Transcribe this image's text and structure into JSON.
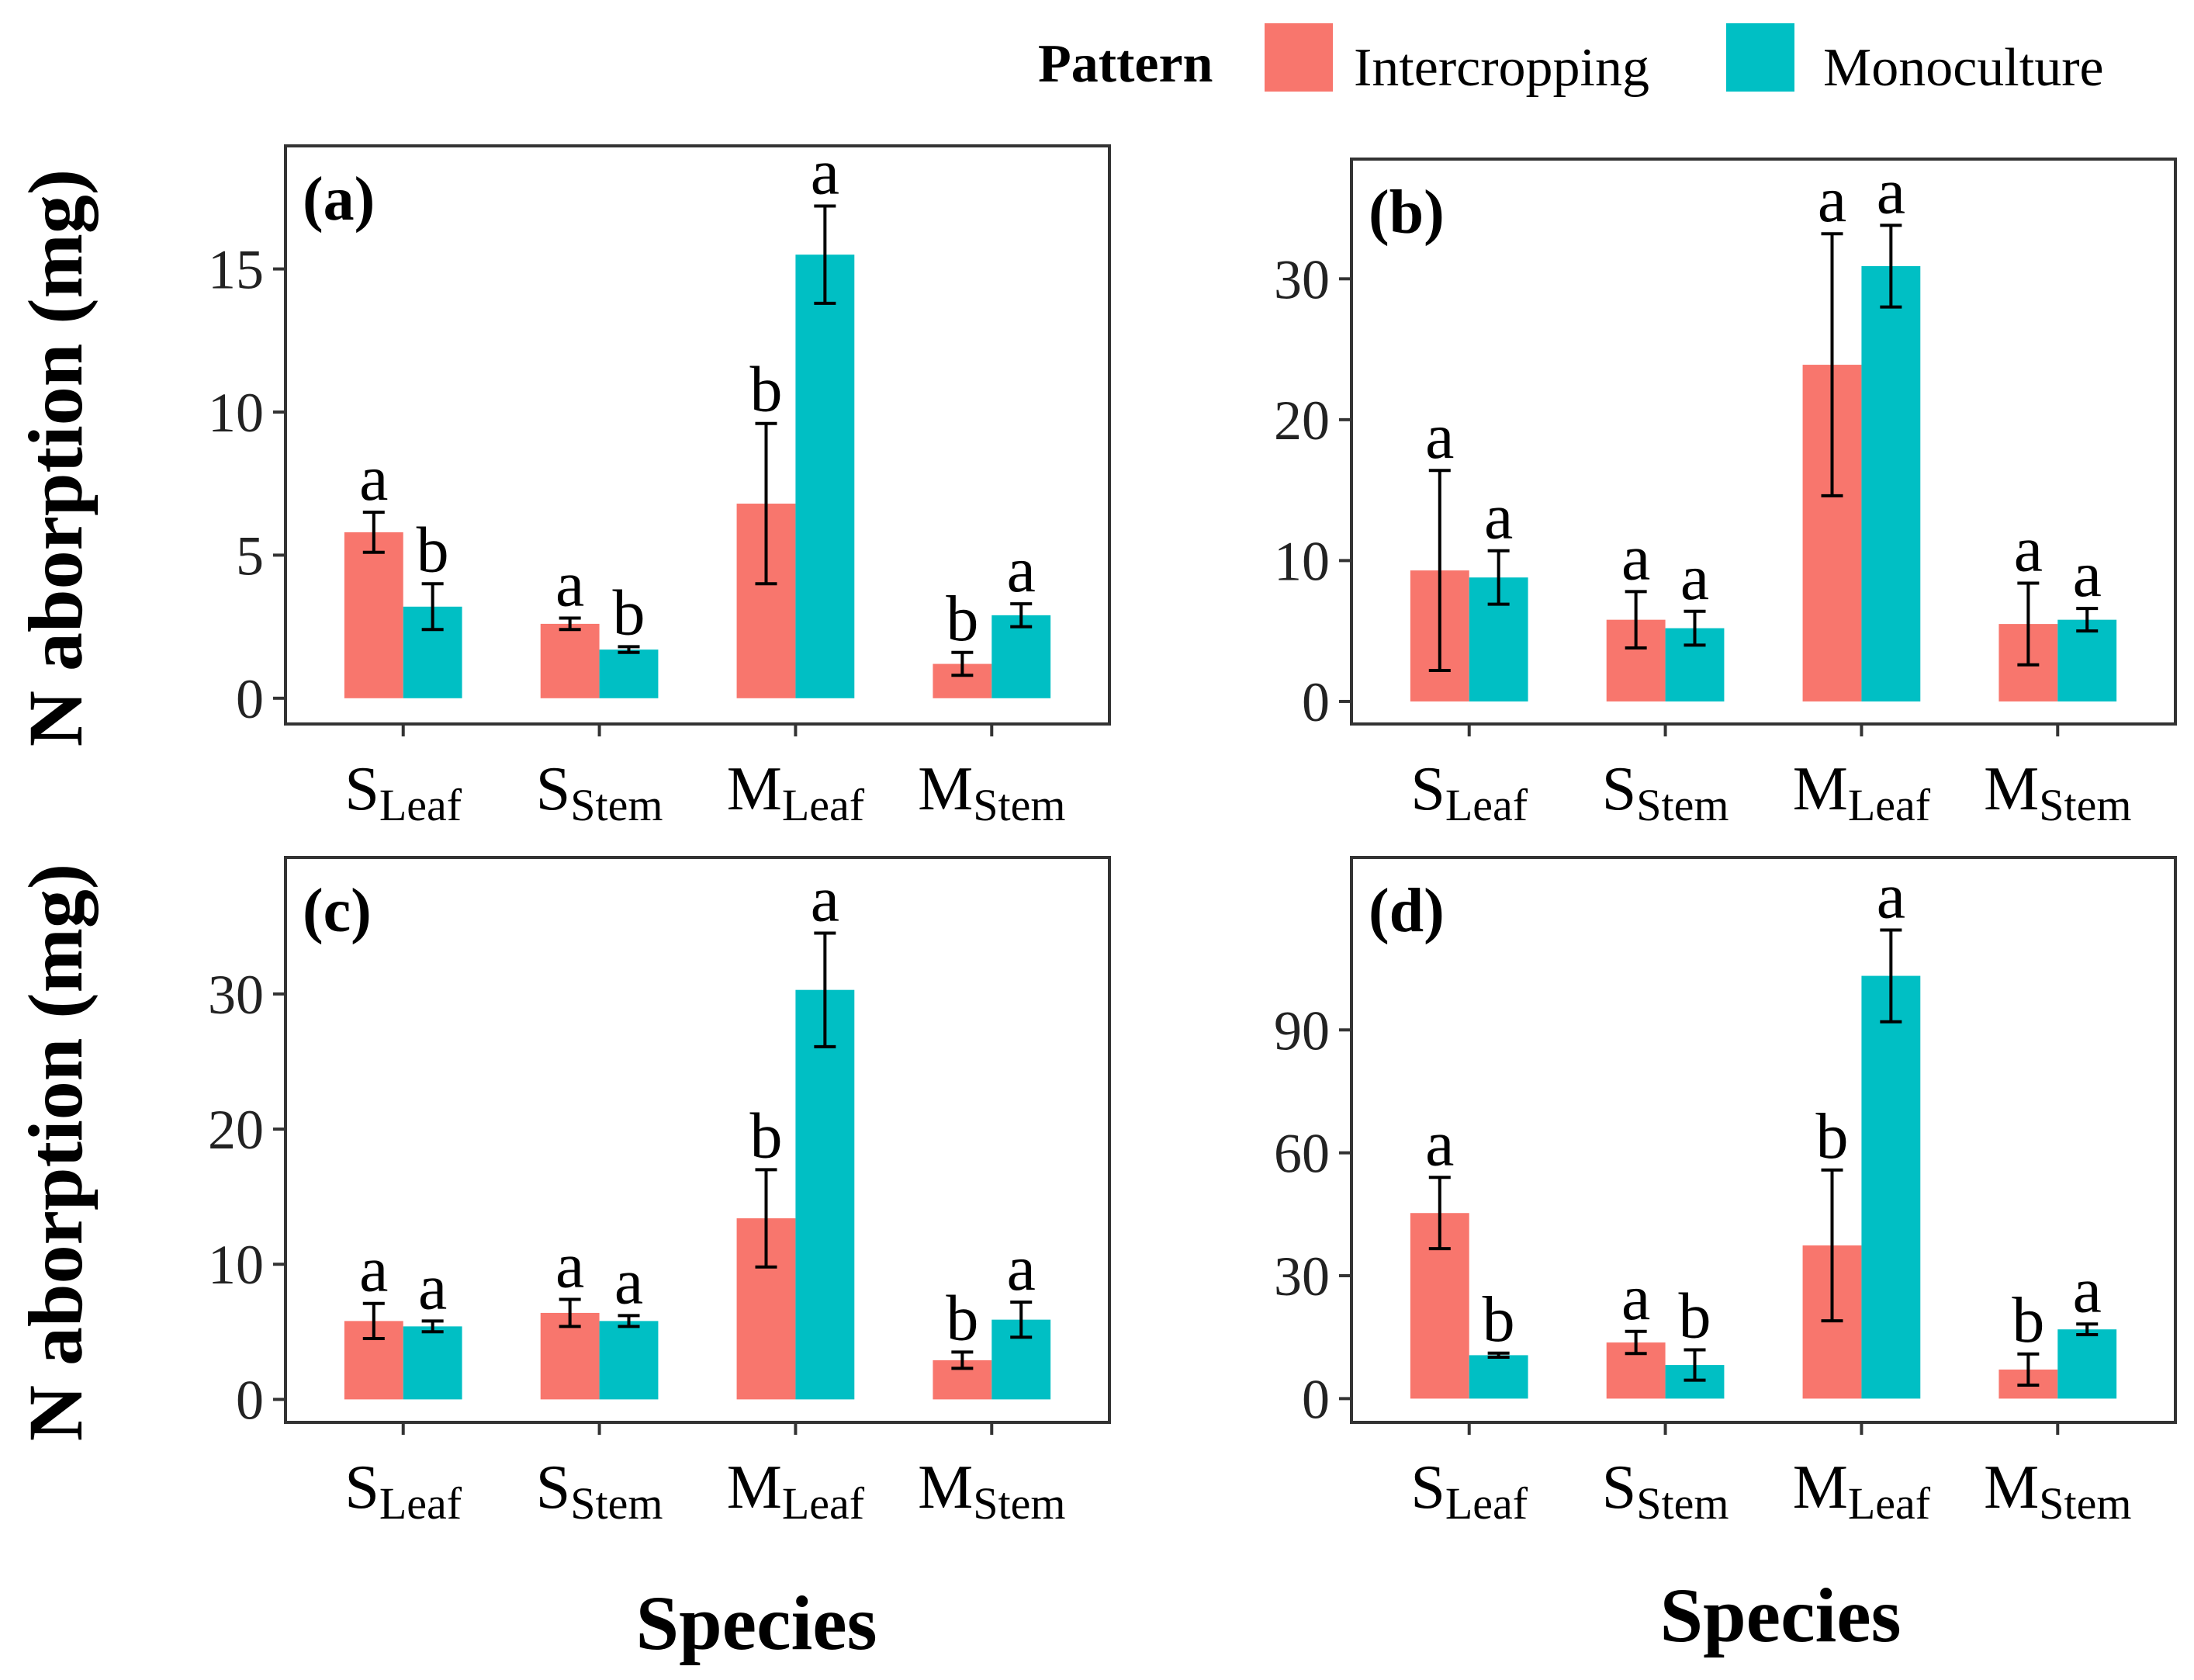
{
  "legend": {
    "title": "Pattern",
    "entries": [
      {
        "label": "Intercropping",
        "color": "#F8766D"
      },
      {
        "label": "Monoculture",
        "color": "#00BFC4"
      }
    ]
  },
  "axis_labels": {
    "y_left": "N aborption (mg)",
    "y_left_2": "N aborption (mg)",
    "x_left": "Species",
    "x_right": "Species"
  },
  "chart_data": [
    {
      "type": "bar",
      "panel": "(a)",
      "xlabel": "Species",
      "ylabel": "N aborption (mg)",
      "categories": [
        {
          "main": "S",
          "sub": "Leaf"
        },
        {
          "main": "S",
          "sub": "Stem"
        },
        {
          "main": "M",
          "sub": "Leaf"
        },
        {
          "main": "M",
          "sub": "Stem"
        }
      ],
      "ylim": [
        -0.9,
        19.3
      ],
      "yticks": [
        "0",
        "5",
        "10",
        "15"
      ],
      "ytick_values": [
        0,
        5,
        10,
        15
      ],
      "series": [
        {
          "name": "Intercropping",
          "color": "#F8766D",
          "values": [
            5.8,
            2.6,
            6.8,
            1.2
          ],
          "errors": [
            0.7,
            0.2,
            2.8,
            0.4
          ],
          "sig": [
            "a",
            "a",
            "b",
            "b"
          ]
        },
        {
          "name": "Monoculture",
          "color": "#00BFC4",
          "values": [
            3.2,
            1.7,
            15.5,
            2.9
          ],
          "errors": [
            0.8,
            0.1,
            1.7,
            0.4
          ],
          "sig": [
            "b",
            "b",
            "a",
            "a"
          ]
        }
      ]
    },
    {
      "type": "bar",
      "panel": "(b)",
      "xlabel": "Species",
      "ylabel": "N aborption (mg)",
      "categories": [
        {
          "main": "S",
          "sub": "Leaf"
        },
        {
          "main": "S",
          "sub": "Stem"
        },
        {
          "main": "M",
          "sub": "Leaf"
        },
        {
          "main": "M",
          "sub": "Stem"
        }
      ],
      "ylim": [
        -1.6,
        38.5
      ],
      "yticks": [
        "0",
        "10",
        "20",
        "30"
      ],
      "ytick_values": [
        0,
        10,
        20,
        30
      ],
      "series": [
        {
          "name": "Intercropping",
          "color": "#F8766D",
          "values": [
            9.3,
            5.8,
            23.9,
            5.5
          ],
          "errors": [
            7.1,
            2.0,
            9.3,
            2.9
          ],
          "sig": [
            "a",
            "a",
            "a",
            "a"
          ]
        },
        {
          "name": "Monoculture",
          "color": "#00BFC4",
          "values": [
            8.8,
            5.2,
            30.9,
            5.8
          ],
          "errors": [
            1.9,
            1.2,
            2.9,
            0.8
          ],
          "sig": [
            "a",
            "a",
            "a",
            "a"
          ]
        }
      ]
    },
    {
      "type": "bar",
      "panel": "(c)",
      "xlabel": "Species",
      "ylabel": "N aborption (mg)",
      "categories": [
        {
          "main": "S",
          "sub": "Leaf"
        },
        {
          "main": "S",
          "sub": "Stem"
        },
        {
          "main": "M",
          "sub": "Leaf"
        },
        {
          "main": "M",
          "sub": "Stem"
        }
      ],
      "ylim": [
        -1.7,
        40.1
      ],
      "yticks": [
        "0",
        "10",
        "20",
        "30"
      ],
      "ytick_values": [
        0,
        10,
        20,
        30
      ],
      "series": [
        {
          "name": "Intercropping",
          "color": "#F8766D",
          "values": [
            5.8,
            6.4,
            13.4,
            2.9
          ],
          "errors": [
            1.3,
            1.0,
            3.6,
            0.6
          ],
          "sig": [
            "a",
            "a",
            "b",
            "b"
          ]
        },
        {
          "name": "Monoculture",
          "color": "#00BFC4",
          "values": [
            5.4,
            5.8,
            30.3,
            5.9
          ],
          "errors": [
            0.4,
            0.4,
            4.2,
            1.3
          ],
          "sig": [
            "a",
            "a",
            "a",
            "a"
          ]
        }
      ]
    },
    {
      "type": "bar",
      "panel": "(d)",
      "xlabel": "Species",
      "ylabel": "N aborption (mg)",
      "categories": [
        {
          "main": "S",
          "sub": "Leaf"
        },
        {
          "main": "S",
          "sub": "Stem"
        },
        {
          "main": "M",
          "sub": "Leaf"
        },
        {
          "main": "M",
          "sub": "Stem"
        }
      ],
      "ylim": [
        -5.8,
        132.1
      ],
      "yticks": [
        "0",
        "30",
        "60",
        "90"
      ],
      "ytick_values": [
        0,
        30,
        60,
        90
      ],
      "series": [
        {
          "name": "Intercropping",
          "color": "#F8766D",
          "values": [
            45.3,
            13.7,
            37.4,
            7.1
          ],
          "errors": [
            8.7,
            2.7,
            18.4,
            3.8
          ],
          "sig": [
            "a",
            "a",
            "b",
            "b"
          ]
        },
        {
          "name": "Monoculture",
          "color": "#00BFC4",
          "values": [
            10.6,
            8.2,
            103.2,
            16.9
          ],
          "errors": [
            0.5,
            3.7,
            11.2,
            1.3
          ],
          "sig": [
            "b",
            "b",
            "a",
            "a"
          ]
        }
      ]
    }
  ]
}
